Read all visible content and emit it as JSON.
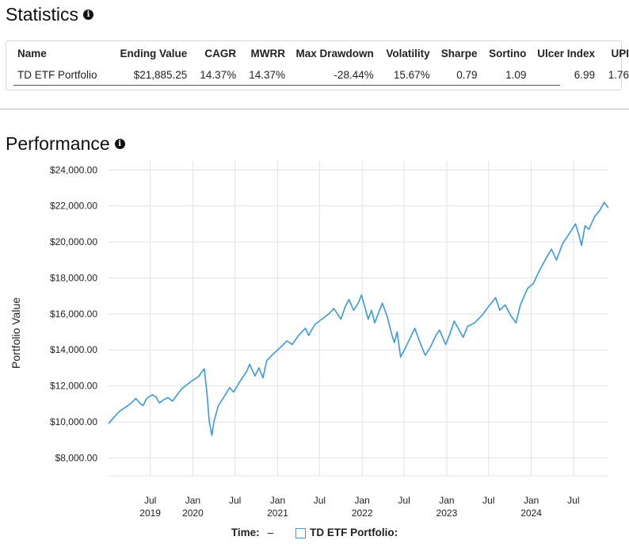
{
  "statistics": {
    "title": "Statistics",
    "headers": [
      "Name",
      "Ending Value",
      "CAGR",
      "MWRR",
      "Max Drawdown",
      "Volatility",
      "Sharpe",
      "Sortino",
      "Ulcer Index",
      "UPI"
    ],
    "rows": [
      [
        "TD ETF Portfolio",
        "$21,885.25",
        "14.37%",
        "14.37%",
        "-28.44%",
        "15.67%",
        "0.79",
        "1.09",
        "6.99",
        "1.76"
      ]
    ]
  },
  "performance": {
    "title": "Performance",
    "legend": {
      "time_label": "Time:",
      "time_value": "–",
      "series_label": "TD ETF Portfolio:"
    },
    "colors": {
      "line": "#3a9ad9",
      "grid": "#e3e3e3"
    }
  },
  "chart_data": {
    "type": "line",
    "ylabel": "Portfolio Value",
    "ylim": [
      7000,
      24500
    ],
    "yticks": [
      8000,
      10000,
      12000,
      14000,
      16000,
      18000,
      20000,
      22000,
      24000
    ],
    "ytick_labels": [
      "$8,000.00",
      "$10,000.00",
      "$12,000.00",
      "$14,000.00",
      "$16,000.00",
      "$18,000.00",
      "$20,000.00",
      "$22,000.00",
      "$24,000.00"
    ],
    "xlim": [
      "2019-01-02",
      "2024-11-29"
    ],
    "xticks": [
      {
        "date": "2019-07-01",
        "label": "Jul",
        "year": "2019"
      },
      {
        "date": "2020-01-01",
        "label": "Jan",
        "year": "2020"
      },
      {
        "date": "2020-07-01",
        "label": "Jul",
        "year": ""
      },
      {
        "date": "2021-01-01",
        "label": "Jan",
        "year": "2021"
      },
      {
        "date": "2021-07-01",
        "label": "Jul",
        "year": ""
      },
      {
        "date": "2022-01-01",
        "label": "Jan",
        "year": "2022"
      },
      {
        "date": "2022-07-01",
        "label": "Jul",
        "year": ""
      },
      {
        "date": "2023-01-01",
        "label": "Jan",
        "year": "2023"
      },
      {
        "date": "2023-07-01",
        "label": "Jul",
        "year": ""
      },
      {
        "date": "2024-01-01",
        "label": "Jan",
        "year": "2024"
      },
      {
        "date": "2024-07-01",
        "label": "Jul",
        "year": ""
      }
    ],
    "series": [
      {
        "name": "TD ETF Portfolio",
        "points": [
          [
            "2019-01-02",
            9900
          ],
          [
            "2019-01-25",
            10250
          ],
          [
            "2019-02-20",
            10600
          ],
          [
            "2019-03-15",
            10800
          ],
          [
            "2019-04-10",
            11050
          ],
          [
            "2019-04-30",
            11300
          ],
          [
            "2019-05-20",
            11000
          ],
          [
            "2019-05-31",
            10900
          ],
          [
            "2019-06-15",
            11300
          ],
          [
            "2019-07-10",
            11500
          ],
          [
            "2019-07-25",
            11400
          ],
          [
            "2019-08-10",
            11050
          ],
          [
            "2019-08-25",
            11200
          ],
          [
            "2019-09-15",
            11350
          ],
          [
            "2019-10-05",
            11150
          ],
          [
            "2019-10-25",
            11500
          ],
          [
            "2019-11-15",
            11850
          ],
          [
            "2019-12-10",
            12100
          ],
          [
            "2020-01-05",
            12350
          ],
          [
            "2020-01-25",
            12500
          ],
          [
            "2020-02-10",
            12800
          ],
          [
            "2020-02-19",
            12950
          ],
          [
            "2020-03-01",
            11700
          ],
          [
            "2020-03-12",
            10000
          ],
          [
            "2020-03-23",
            9250
          ],
          [
            "2020-04-01",
            10000
          ],
          [
            "2020-04-20",
            10900
          ],
          [
            "2020-05-10",
            11300
          ],
          [
            "2020-06-08",
            11900
          ],
          [
            "2020-06-25",
            11650
          ],
          [
            "2020-07-20",
            12200
          ],
          [
            "2020-08-20",
            12800
          ],
          [
            "2020-09-02",
            13200
          ],
          [
            "2020-09-25",
            12550
          ],
          [
            "2020-10-12",
            13000
          ],
          [
            "2020-10-30",
            12450
          ],
          [
            "2020-11-15",
            13400
          ],
          [
            "2020-12-15",
            13800
          ],
          [
            "2021-01-10",
            14100
          ],
          [
            "2021-02-10",
            14500
          ],
          [
            "2021-03-05",
            14300
          ],
          [
            "2021-04-01",
            14800
          ],
          [
            "2021-05-01",
            15200
          ],
          [
            "2021-05-15",
            14800
          ],
          [
            "2021-06-10",
            15400
          ],
          [
            "2021-07-10",
            15700
          ],
          [
            "2021-08-10",
            16000
          ],
          [
            "2021-09-01",
            16300
          ],
          [
            "2021-10-01",
            15700
          ],
          [
            "2021-10-20",
            16400
          ],
          [
            "2021-11-05",
            16800
          ],
          [
            "2021-11-25",
            16200
          ],
          [
            "2021-12-15",
            16600
          ],
          [
            "2021-12-29",
            17050
          ],
          [
            "2022-01-10",
            16500
          ],
          [
            "2022-01-27",
            15700
          ],
          [
            "2022-02-10",
            16200
          ],
          [
            "2022-02-24",
            15500
          ],
          [
            "2022-03-29",
            16600
          ],
          [
            "2022-04-20",
            15800
          ],
          [
            "2022-05-10",
            14800
          ],
          [
            "2022-05-20",
            14400
          ],
          [
            "2022-06-01",
            15000
          ],
          [
            "2022-06-16",
            13600
          ],
          [
            "2022-07-10",
            14200
          ],
          [
            "2022-08-16",
            15200
          ],
          [
            "2022-09-05",
            14500
          ],
          [
            "2022-09-30",
            13700
          ],
          [
            "2022-10-20",
            14100
          ],
          [
            "2022-11-15",
            14800
          ],
          [
            "2022-12-01",
            15100
          ],
          [
            "2022-12-28",
            14300
          ],
          [
            "2023-01-15",
            14900
          ],
          [
            "2023-02-02",
            15600
          ],
          [
            "2023-02-28",
            15000
          ],
          [
            "2023-03-13",
            14700
          ],
          [
            "2023-04-01",
            15300
          ],
          [
            "2023-05-01",
            15500
          ],
          [
            "2023-06-01",
            15900
          ],
          [
            "2023-06-30",
            16400
          ],
          [
            "2023-07-31",
            16900
          ],
          [
            "2023-08-18",
            16200
          ],
          [
            "2023-09-10",
            16500
          ],
          [
            "2023-10-05",
            15900
          ],
          [
            "2023-10-27",
            15500
          ],
          [
            "2023-11-15",
            16500
          ],
          [
            "2023-12-15",
            17400
          ],
          [
            "2024-01-10",
            17700
          ],
          [
            "2024-02-01",
            18300
          ],
          [
            "2024-03-01",
            19000
          ],
          [
            "2024-03-28",
            19600
          ],
          [
            "2024-04-19",
            19000
          ],
          [
            "2024-05-15",
            19900
          ],
          [
            "2024-06-15",
            20500
          ],
          [
            "2024-07-10",
            21000
          ],
          [
            "2024-07-24",
            20400
          ],
          [
            "2024-08-05",
            19800
          ],
          [
            "2024-08-20",
            20900
          ],
          [
            "2024-09-06",
            20700
          ],
          [
            "2024-09-30",
            21400
          ],
          [
            "2024-10-20",
            21700
          ],
          [
            "2024-11-11",
            22200
          ],
          [
            "2024-11-29",
            21885
          ]
        ]
      }
    ]
  }
}
